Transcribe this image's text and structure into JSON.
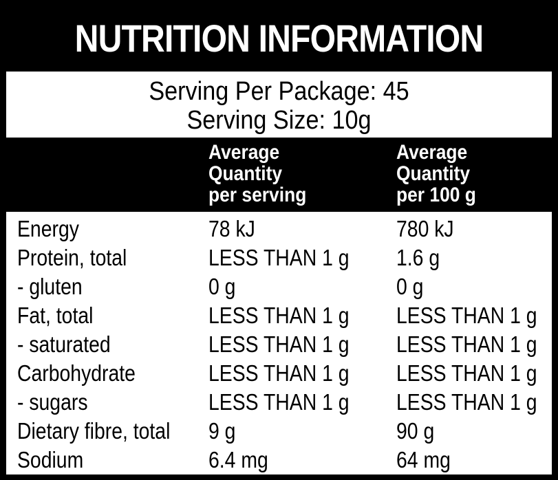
{
  "title": "NUTRITION INFORMATION",
  "serving": {
    "per_package": "Serving Per Package: 45",
    "size": "Serving Size: 10g"
  },
  "columns": [
    {
      "lines": [
        "Average",
        "Quantity",
        "per serving"
      ]
    },
    {
      "lines": [
        "Average",
        "Quantity",
        "per 100 g"
      ]
    }
  ],
  "rows": [
    {
      "name": "Energy",
      "per_serving": "78 kJ",
      "per_100g": "780 kJ"
    },
    {
      "name": "Protein, total",
      "per_serving": "LESS THAN 1 g",
      "per_100g": "1.6 g"
    },
    {
      "name": "- gluten",
      "per_serving": "0 g",
      "per_100g": "0 g"
    },
    {
      "name": "Fat, total",
      "per_serving": "LESS THAN 1 g",
      "per_100g": "LESS THAN 1 g"
    },
    {
      "name": "- saturated",
      "per_serving": "LESS THAN 1 g",
      "per_100g": "LESS THAN 1 g"
    },
    {
      "name": "Carbohydrate",
      "per_serving": "LESS THAN 1 g",
      "per_100g": "LESS THAN 1 g"
    },
    {
      "name": "- sugars",
      "per_serving": "LESS THAN 1 g",
      "per_100g": "LESS THAN 1 g"
    },
    {
      "name": "Dietary fibre, total",
      "per_serving": "9 g",
      "per_100g": "90 g"
    },
    {
      "name": "Sodium",
      "per_serving": "6.4 mg",
      "per_100g": "64 mg"
    }
  ],
  "colors": {
    "background": "#000000",
    "panel": "#ffffff",
    "text_dark": "#000000",
    "text_light": "#ffffff"
  }
}
